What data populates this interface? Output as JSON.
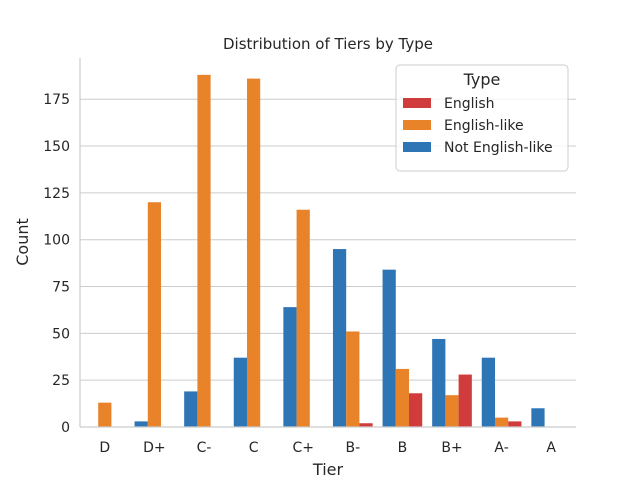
{
  "chart_data": {
    "type": "bar",
    "title": "Distribution of Tiers by Type",
    "xlabel": "Tier",
    "ylabel": "Count",
    "ylim": [
      0,
      197
    ],
    "yticks": [
      0,
      25,
      50,
      75,
      100,
      125,
      150,
      175
    ],
    "grid": "horizontal",
    "legend_title": "Type",
    "legend_position": "top-right",
    "categories": [
      "D",
      "D+",
      "C-",
      "C",
      "C+",
      "B-",
      "B",
      "B+",
      "A-",
      "A"
    ],
    "series": [
      {
        "name": "Not English-like",
        "color": "#2e75b6",
        "values": [
          0,
          3,
          19,
          37,
          64,
          95,
          84,
          47,
          37,
          10
        ]
      },
      {
        "name": "English-like",
        "color": "#e8832a",
        "values": [
          13,
          120,
          188,
          186,
          116,
          51,
          31,
          17,
          5,
          0
        ]
      },
      {
        "name": "English",
        "color": "#d03b3b",
        "values": [
          0,
          0,
          0,
          0,
          0,
          2,
          18,
          28,
          3,
          0
        ]
      }
    ],
    "legend_order": [
      "English",
      "English-like",
      "Not English-like"
    ]
  }
}
